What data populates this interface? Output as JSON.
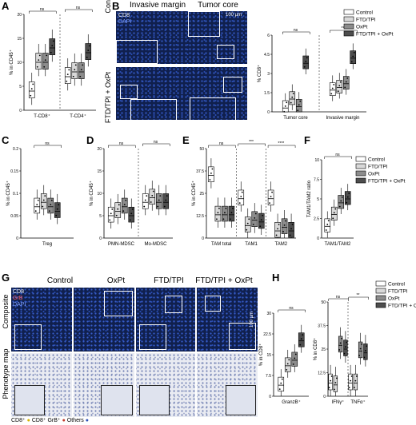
{
  "panels": {
    "A": {
      "label": "A",
      "ylabel": "% in CD45⁺",
      "groups": [
        "T-CD8⁺",
        "T-CD4⁺"
      ],
      "sig": "ns"
    },
    "B": {
      "label": "B",
      "col_titles": [
        "Invasive margin",
        "Tumor core"
      ],
      "row_titles": [
        "Control",
        "FTD/TPI + OxPt"
      ],
      "channels": [
        "CD8",
        "DAPI"
      ],
      "scale": "100 µm",
      "ylabel": "% CD8⁺",
      "groups": [
        "Tumor core",
        "Invasive margin"
      ],
      "sig": [
        "ns",
        "**",
        "***",
        "*"
      ]
    },
    "C": {
      "label": "C",
      "ylabel": "% in CD45⁺",
      "groups": [
        "Treg"
      ],
      "sig": "ns"
    },
    "D": {
      "label": "D",
      "ylabel": "% in CD45⁺",
      "groups": [
        "PMN-MDSC",
        "Mo-MDSC"
      ],
      "sig": "ns"
    },
    "E": {
      "label": "E",
      "ylabel": "% in CD45⁺",
      "groups": [
        "TAM total",
        "TAM1",
        "TAM2"
      ],
      "sig": [
        "ns",
        "***",
        "****",
        "**"
      ]
    },
    "F": {
      "label": "F",
      "ylabel": "TAM1/TAM2 ratio",
      "groups": [
        "TAM1/TAM2"
      ],
      "sig": [
        "ns",
        "*"
      ]
    },
    "G": {
      "label": "G",
      "col_titles": [
        "Control",
        "OxPt",
        "FTD/TPI",
        "FTD/TPI + OxPt"
      ],
      "row_titles": [
        "Composite",
        "Phenotype map"
      ],
      "channels": [
        "CD8",
        "GrB",
        "DAPI"
      ],
      "scale": "100 µm",
      "ylabel": "% in CD8⁺",
      "groups": [
        "GranzB⁺"
      ],
      "legend": [
        "CD8⁺",
        "CD8⁺ GrB⁺",
        "Others"
      ],
      "sig": [
        "ns",
        "*"
      ]
    },
    "H": {
      "label": "H",
      "ylabel": "% in CD8⁺",
      "groups": [
        "IFNγ⁺",
        "TNFα⁺"
      ],
      "sig": [
        "ns",
        "**",
        "*"
      ]
    }
  },
  "legend": {
    "items": [
      "Control",
      "FTD/TPI",
      "OxPt",
      "FTD/TPI + OxPt"
    ],
    "colors": [
      "#ffffff",
      "#d9d9d9",
      "#8c8c8c",
      "#4d4d4d"
    ]
  },
  "chart_data": [
    {
      "type": "box",
      "panel": "A",
      "categories": [
        "T-CD8⁺",
        "T-CD4⁺"
      ],
      "series": [
        {
          "name": "Control",
          "values": [
            4,
            7
          ]
        },
        {
          "name": "FTD/TPI",
          "values": [
            10,
            8
          ]
        },
        {
          "name": "OxPt",
          "values": [
            10,
            8
          ]
        },
        {
          "name": "FTD/TPI + OxPt",
          "values": [
            13,
            12
          ]
        }
      ],
      "ylim": [
        0,
        20
      ]
    },
    {
      "type": "box",
      "panel": "B",
      "categories": [
        "Tumor core",
        "Invasive margin"
      ],
      "series": [
        {
          "name": "Control",
          "values": [
            0.3,
            1.7
          ]
        },
        {
          "name": "FTD/TPI",
          "values": [
            1.0,
            1.9
          ]
        },
        {
          "name": "OxPt",
          "values": [
            0.4,
            2.2
          ]
        },
        {
          "name": "FTD/TPI + OxPt",
          "values": [
            3.8,
            4.2
          ]
        }
      ],
      "ylim": [
        0,
        6
      ]
    },
    {
      "type": "box",
      "panel": "C",
      "categories": [
        "Treg"
      ],
      "series": [
        {
          "name": "Control",
          "values": [
            0.07
          ]
        },
        {
          "name": "FTD/TPI",
          "values": [
            0.08
          ]
        },
        {
          "name": "OxPt",
          "values": [
            0.07
          ]
        },
        {
          "name": "FTD/TPI + OxPt",
          "values": [
            0.06
          ]
        }
      ],
      "ylim": [
        0,
        0.2
      ]
    },
    {
      "type": "box",
      "panel": "D",
      "categories": [
        "PMN-MDSC",
        "Mo-MDSC"
      ],
      "series": [
        {
          "name": "Control",
          "values": [
            5,
            8
          ]
        },
        {
          "name": "FTD/TPI",
          "values": [
            6,
            9
          ]
        },
        {
          "name": "OxPt",
          "values": [
            7,
            8
          ]
        },
        {
          "name": "FTD/TPI + OxPt",
          "values": [
            5,
            8
          ]
        }
      ],
      "ylim": [
        0,
        20
      ]
    },
    {
      "type": "box",
      "panel": "E",
      "categories": [
        "TAM total",
        "TAM1",
        "TAM2"
      ],
      "series": [
        {
          "name": "Control",
          "values": [
            35,
            22,
            22
          ]
        },
        {
          "name": "FTD/TPI",
          "values": [
            13,
            7,
            4
          ]
        },
        {
          "name": "OxPt",
          "values": [
            13,
            10,
            6
          ]
        },
        {
          "name": "FTD/TPI + OxPt",
          "values": [
            13,
            9,
            4
          ]
        }
      ],
      "ylim": [
        0,
        50
      ]
    },
    {
      "type": "box",
      "panel": "F",
      "categories": [
        "TAM1/TAM2"
      ],
      "series": [
        {
          "name": "Control",
          "values": [
            1.5
          ]
        },
        {
          "name": "FTD/TPI",
          "values": [
            3
          ]
        },
        {
          "name": "OxPt",
          "values": [
            4.5
          ]
        },
        {
          "name": "FTD/TPI + OxPt",
          "values": [
            5
          ]
        }
      ],
      "ylim": [
        0,
        10
      ]
    },
    {
      "type": "box",
      "panel": "G",
      "categories": [
        "GranzB⁺"
      ],
      "series": [
        {
          "name": "Control",
          "values": [
            4
          ]
        },
        {
          "name": "FTD/TPI",
          "values": [
            11
          ]
        },
        {
          "name": "OxPt",
          "values": [
            13
          ]
        },
        {
          "name": "FTD/TPI + OxPt",
          "values": [
            20
          ]
        }
      ],
      "ylim": [
        0,
        30
      ]
    },
    {
      "type": "box",
      "panel": "H",
      "categories": [
        "IFNγ⁺",
        "TNFα⁺"
      ],
      "series": [
        {
          "name": "Control",
          "values": [
            7,
            7
          ]
        },
        {
          "name": "FTD/TPI",
          "values": [
            6,
            7
          ]
        },
        {
          "name": "OxPt",
          "values": [
            27,
            24
          ]
        },
        {
          "name": "FTD/TPI + OxPt",
          "values": [
            25,
            23
          ]
        }
      ],
      "ylim": [
        0,
        50
      ]
    }
  ]
}
